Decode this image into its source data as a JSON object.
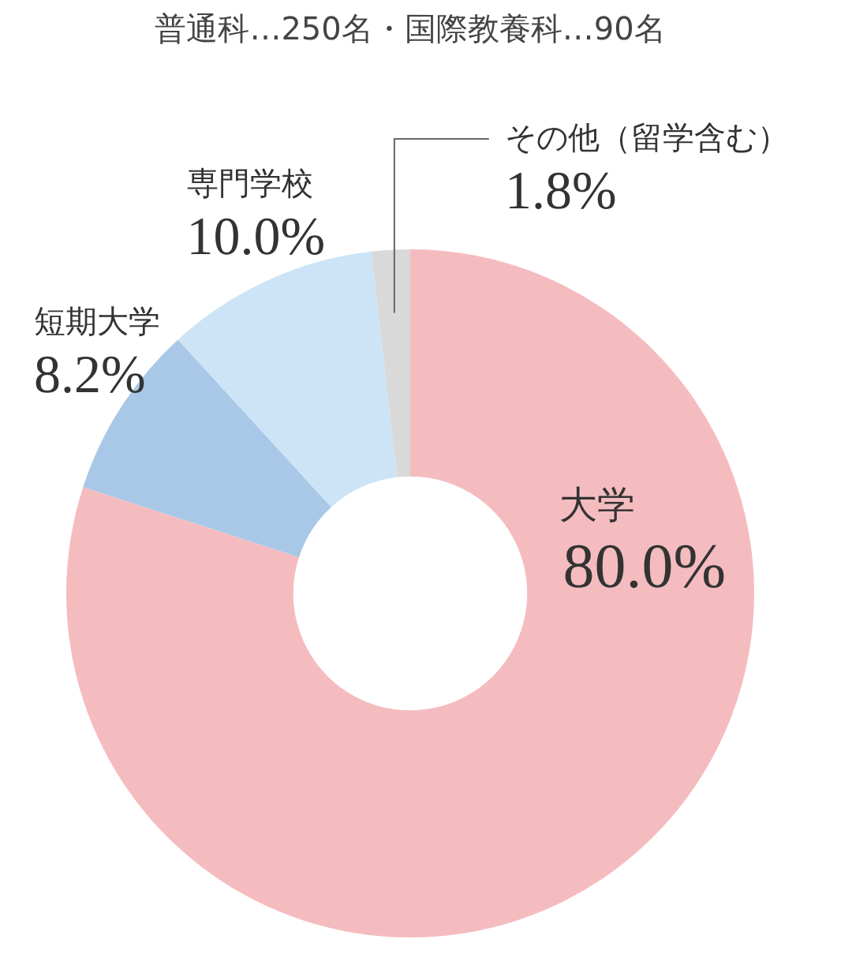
{
  "chart_data": {
    "type": "donut",
    "title": "普通科…250名・国際教養科…90名",
    "categories": [
      "大学",
      "短期大学",
      "専門学校",
      "その他（留学含む）"
    ],
    "values": [
      80.0,
      8.2,
      10.0,
      1.8
    ],
    "value_labels": [
      "80.0%",
      "8.2%",
      "10.0%",
      "1.8%"
    ],
    "colors": [
      "#f5bcc0",
      "#a9c8e8",
      "#cce4f5",
      "#d9d9d9"
    ],
    "legend": false
  }
}
